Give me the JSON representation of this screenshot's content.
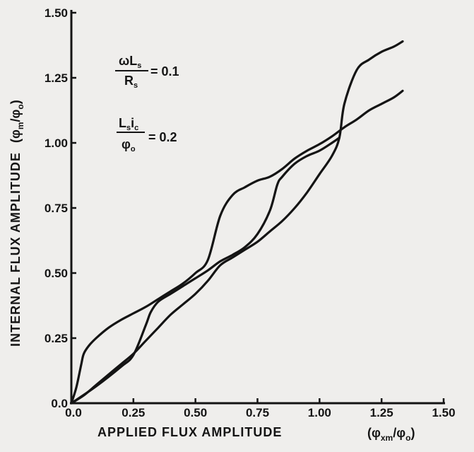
{
  "chart_data": {
    "type": "line",
    "xlabel": "APPLIED FLUX AMPLITUDE",
    "xlabel_unit": {
      "base": "(φ",
      "sub1": "xm",
      "mid": "/φ",
      "sub2": "o",
      "end": ")"
    },
    "ylabel": "INTERNAL FLUX AMPLITUDE",
    "ylabel_unit": {
      "base": "(φ",
      "sub1": "m",
      "mid": "/φ",
      "sub2": "o",
      "end": ")"
    },
    "xlim": [
      0,
      1.5
    ],
    "ylim": [
      0,
      1.5
    ],
    "x_ticks": [
      0,
      0.25,
      0.5,
      0.75,
      1.0,
      1.25,
      1.5
    ],
    "x_tick_labels": [
      "0.0",
      "0.25",
      "0.50",
      "0.75",
      "1.00",
      "1.25",
      "1.50"
    ],
    "y_ticks": [
      0,
      0.25,
      0.5,
      0.75,
      1.0,
      1.25,
      1.5
    ],
    "y_tick_labels": [
      "0.0",
      "0.25",
      "0.50",
      "0.75",
      "1.00",
      "1.25",
      "1.50"
    ],
    "annotations": [
      {
        "numerator": "ωL",
        "numerator_sub": "s",
        "denominator": "R",
        "denominator_sub": "s",
        "value": "= 0.1"
      },
      {
        "numerator": "L",
        "numerator_sub": "s",
        "numerator2": "i",
        "numerator2_sub": "c",
        "denominator": "φ",
        "denominator_sub": "o",
        "value": "= 0.2"
      }
    ],
    "grid": false,
    "series": [
      {
        "x": [
          0,
          0.02,
          0.04,
          0.05,
          0.07,
          0.1,
          0.15,
          0.2,
          0.25,
          0.3,
          0.35,
          0.4,
          0.45,
          0.5,
          0.55,
          0.6,
          0.65,
          0.7,
          0.75,
          0.8,
          0.85,
          0.9,
          0.95,
          1.0,
          1.05,
          1.1,
          1.15,
          1.2,
          1.25,
          1.3,
          1.335
        ],
        "y": [
          0,
          0.06,
          0.15,
          0.19,
          0.22,
          0.25,
          0.29,
          0.32,
          0.345,
          0.37,
          0.4,
          0.43,
          0.46,
          0.5,
          0.55,
          0.72,
          0.8,
          0.83,
          0.855,
          0.87,
          0.9,
          0.94,
          0.97,
          0.995,
          1.025,
          1.06,
          1.09,
          1.125,
          1.15,
          1.175,
          1.2
        ]
      },
      {
        "x": [
          0,
          0.05,
          0.1,
          0.15,
          0.2,
          0.25,
          0.3,
          0.35,
          0.4,
          0.45,
          0.5,
          0.55,
          0.6,
          0.65,
          0.7,
          0.75,
          0.8,
          0.85,
          0.9,
          0.95,
          1.0,
          1.05,
          1.08,
          1.1,
          1.15,
          1.2,
          1.25,
          1.3,
          1.335
        ],
        "y": [
          0,
          0.03,
          0.07,
          0.11,
          0.15,
          0.19,
          0.24,
          0.29,
          0.34,
          0.38,
          0.42,
          0.47,
          0.53,
          0.56,
          0.59,
          0.62,
          0.66,
          0.7,
          0.75,
          0.81,
          0.88,
          0.95,
          1.02,
          1.15,
          1.28,
          1.32,
          1.35,
          1.37,
          1.39
        ]
      },
      {
        "x": [
          0,
          0.1,
          0.2,
          0.25,
          0.3,
          0.32,
          0.35,
          0.4,
          0.45,
          0.5,
          0.55,
          0.6,
          0.65,
          0.7,
          0.75,
          0.8,
          0.83,
          0.85,
          0.9,
          0.95,
          1.0,
          1.05,
          1.08
        ],
        "y": [
          0,
          0.065,
          0.14,
          0.185,
          0.3,
          0.35,
          0.39,
          0.42,
          0.45,
          0.48,
          0.51,
          0.545,
          0.57,
          0.6,
          0.65,
          0.74,
          0.84,
          0.87,
          0.92,
          0.95,
          0.97,
          1.0,
          1.02
        ]
      }
    ]
  }
}
